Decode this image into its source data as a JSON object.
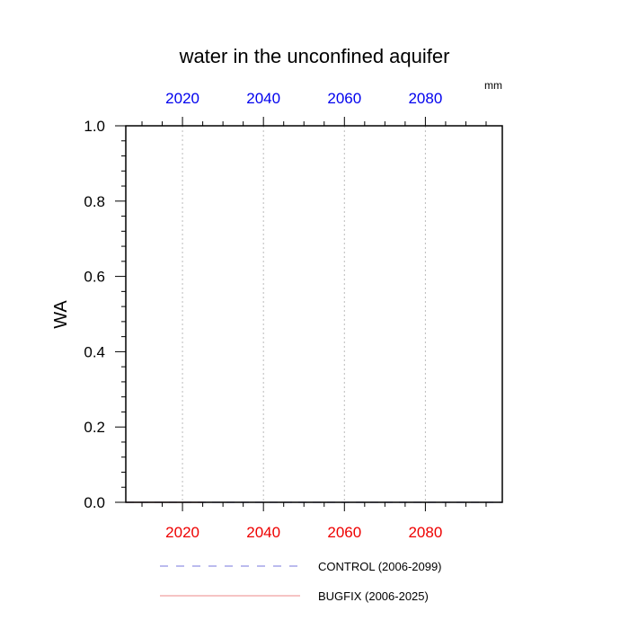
{
  "chart_data": {
    "type": "line",
    "title": "water in the unconfined aquifer",
    "units": "mm",
    "ylabel": "WA",
    "xlabel": "",
    "xlim": [
      2006,
      2099
    ],
    "ylim": [
      0.0,
      1.0
    ],
    "y_ticks": [
      "0.0",
      "0.2",
      "0.4",
      "0.6",
      "0.8",
      "1.0"
    ],
    "y_tick_values": [
      0.0,
      0.2,
      0.4,
      0.6,
      0.8,
      1.0
    ],
    "x_ticks_top": [
      "2020",
      "2040",
      "2060",
      "2080"
    ],
    "x_ticks_bottom": [
      "2020",
      "2040",
      "2060",
      "2080"
    ],
    "x_tick_values": [
      2020,
      2040,
      2060,
      2080
    ],
    "top_tick_color": "#0000ee",
    "bottom_tick_color": "#ee0000",
    "grid": "vertical dotted at major x ticks",
    "legend_position": "bottom",
    "series": [
      {
        "name": "CONTROL (2006-2099)",
        "color": "#7777dd",
        "dash": "dashed",
        "x_range": [
          2006,
          2099
        ],
        "values": [
          0.0,
          0.0
        ]
      },
      {
        "name": "BUGFIX (2006-2025)",
        "color": "#ee8888",
        "dash": "solid",
        "x_range": [
          2006,
          2025
        ],
        "values": [
          0.0,
          0.0
        ]
      }
    ]
  }
}
